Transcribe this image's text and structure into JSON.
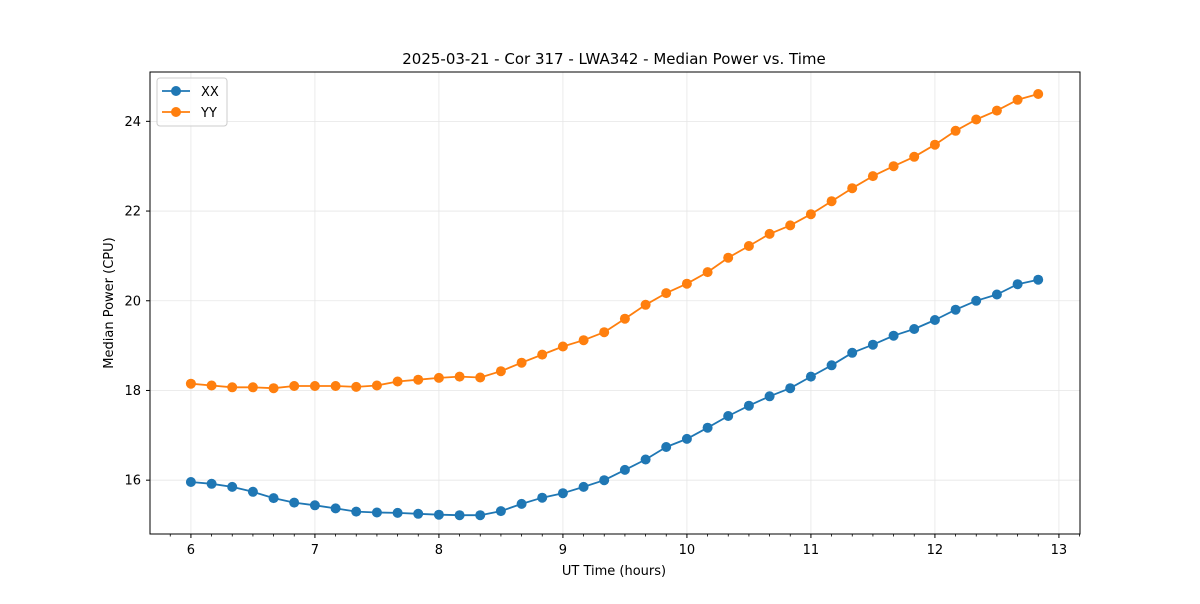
{
  "chart_data": {
    "type": "line",
    "title": "2025-03-21 - Cor 317 - LWA342 - Median Power vs. Time",
    "xlabel": "UT Time (hours)",
    "ylabel": "Median Power (CPU)",
    "xlim": [
      5.67,
      13.17
    ],
    "ylim": [
      14.8,
      25.1
    ],
    "xticks": [
      6,
      7,
      8,
      9,
      10,
      11,
      12,
      13
    ],
    "xtick_labels": [
      "6",
      "7",
      "8",
      "9",
      "10",
      "11",
      "12",
      "13"
    ],
    "yticks": [
      16,
      18,
      20,
      22,
      24
    ],
    "ytick_labels": [
      "16",
      "18",
      "20",
      "22",
      "24"
    ],
    "grid": true,
    "legend_position": "top-left",
    "x": [
      6.0,
      6.1667,
      6.3333,
      6.5,
      6.6667,
      6.8333,
      7.0,
      7.1667,
      7.3333,
      7.5,
      7.6667,
      7.8333,
      8.0,
      8.1667,
      8.3333,
      8.5,
      8.6667,
      8.8333,
      9.0,
      9.1667,
      9.3333,
      9.5,
      9.6667,
      9.8333,
      10.0,
      10.1667,
      10.3333,
      10.5,
      10.6667,
      10.8333,
      11.0,
      11.1667,
      11.3333,
      11.5,
      11.6667,
      11.8333,
      12.0,
      12.1667,
      12.3333,
      12.5,
      12.6667,
      12.8333
    ],
    "series": [
      {
        "name": "XX",
        "color": "#1f77b4",
        "values": [
          15.96,
          15.92,
          15.85,
          15.74,
          15.6,
          15.5,
          15.44,
          15.37,
          15.3,
          15.28,
          15.27,
          15.25,
          15.23,
          15.22,
          15.22,
          15.31,
          15.47,
          15.61,
          15.71,
          15.85,
          16.0,
          16.23,
          16.46,
          16.74,
          16.92,
          17.17,
          17.43,
          17.66,
          17.87,
          18.05,
          18.31,
          18.56,
          18.84,
          19.02,
          19.22,
          19.37,
          19.57,
          19.8,
          20.0,
          20.14,
          20.37,
          20.47
        ]
      },
      {
        "name": "YY",
        "color": "#ff7f0e",
        "values": [
          18.15,
          18.11,
          18.07,
          18.07,
          18.05,
          18.1,
          18.1,
          18.1,
          18.08,
          18.11,
          18.2,
          18.24,
          18.28,
          18.31,
          18.29,
          18.43,
          18.62,
          18.8,
          18.98,
          19.12,
          19.3,
          19.6,
          19.91,
          20.17,
          20.38,
          20.64,
          20.96,
          21.22,
          21.49,
          21.68,
          21.93,
          22.22,
          22.51,
          22.78,
          23.0,
          23.21,
          23.48,
          23.79,
          24.04,
          24.24,
          24.48,
          24.61
        ]
      }
    ]
  }
}
